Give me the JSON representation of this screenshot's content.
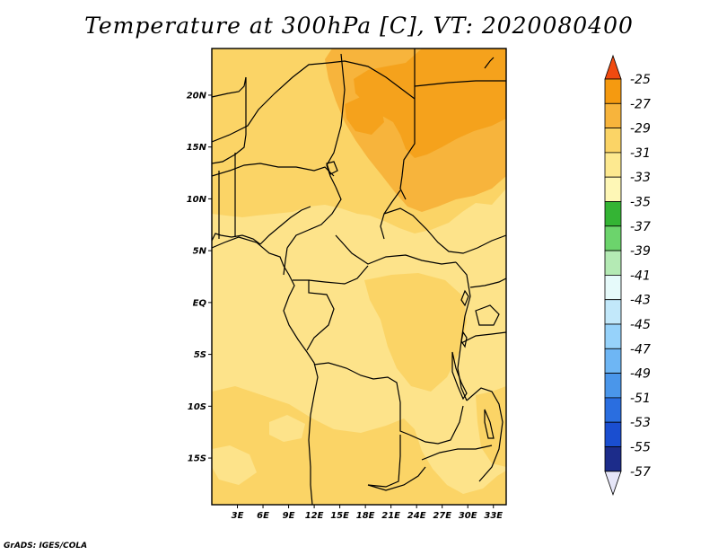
{
  "title": "Temperature at 300hPa [C], VT: 2020080400",
  "credit": "GrADS: IGES/COLA",
  "map": {
    "lon_range": [
      0,
      34.5
    ],
    "lat_range": [
      -19.5,
      24.5
    ],
    "lat_ticks": [
      {
        "value": 20,
        "label": "20N"
      },
      {
        "value": 15,
        "label": "15N"
      },
      {
        "value": 10,
        "label": "10N"
      },
      {
        "value": 5,
        "label": "5N"
      },
      {
        "value": 0,
        "label": "EQ"
      },
      {
        "value": -5,
        "label": "5S"
      },
      {
        "value": -10,
        "label": "10S"
      },
      {
        "value": -15,
        "label": "15S"
      }
    ],
    "lon_ticks": [
      {
        "value": 3,
        "label": "3E"
      },
      {
        "value": 6,
        "label": "6E"
      },
      {
        "value": 9,
        "label": "9E"
      },
      {
        "value": 12,
        "label": "12E"
      },
      {
        "value": 15,
        "label": "15E"
      },
      {
        "value": 18,
        "label": "18E"
      },
      {
        "value": 21,
        "label": "21E"
      },
      {
        "value": 24,
        "label": "24E"
      },
      {
        "value": 27,
        "label": "27E"
      },
      {
        "value": 30,
        "label": "30E"
      },
      {
        "value": 33,
        "label": "33E"
      }
    ]
  },
  "colorbar": {
    "top_color": "#f04a10",
    "bottom_color": "#e6e6f8",
    "bins": [
      {
        "label": "-25",
        "color": "#f26a10"
      },
      {
        "label": "-27",
        "color": "#f59a10"
      },
      {
        "label": "-29",
        "color": "#f7b43c"
      },
      {
        "label": "-31",
        "color": "#fbd466"
      },
      {
        "label": "-33",
        "color": "#fde990"
      },
      {
        "label": "-35",
        "color": "#fef7b6"
      },
      {
        "label": "-37",
        "color": "#34b434"
      },
      {
        "label": "-39",
        "color": "#6cd46c"
      },
      {
        "label": "-41",
        "color": "#b4eab4"
      },
      {
        "label": "-43",
        "color": "#e6fafa"
      },
      {
        "label": "-45",
        "color": "#c2e8fa"
      },
      {
        "label": "-47",
        "color": "#96d2fa"
      },
      {
        "label": "-49",
        "color": "#6eb6f4"
      },
      {
        "label": "-51",
        "color": "#4a96ea"
      },
      {
        "label": "-53",
        "color": "#2a6ee0"
      },
      {
        "label": "-55",
        "color": "#1a4ed0"
      },
      {
        "label": "-57",
        "color": "#1c2c8a"
      }
    ]
  },
  "fill_colors": {
    "c27": "#f5a21c",
    "c29": "#f7b43c",
    "c31": "#fbd466",
    "c33": "#fde38a",
    "border": "#000000"
  }
}
